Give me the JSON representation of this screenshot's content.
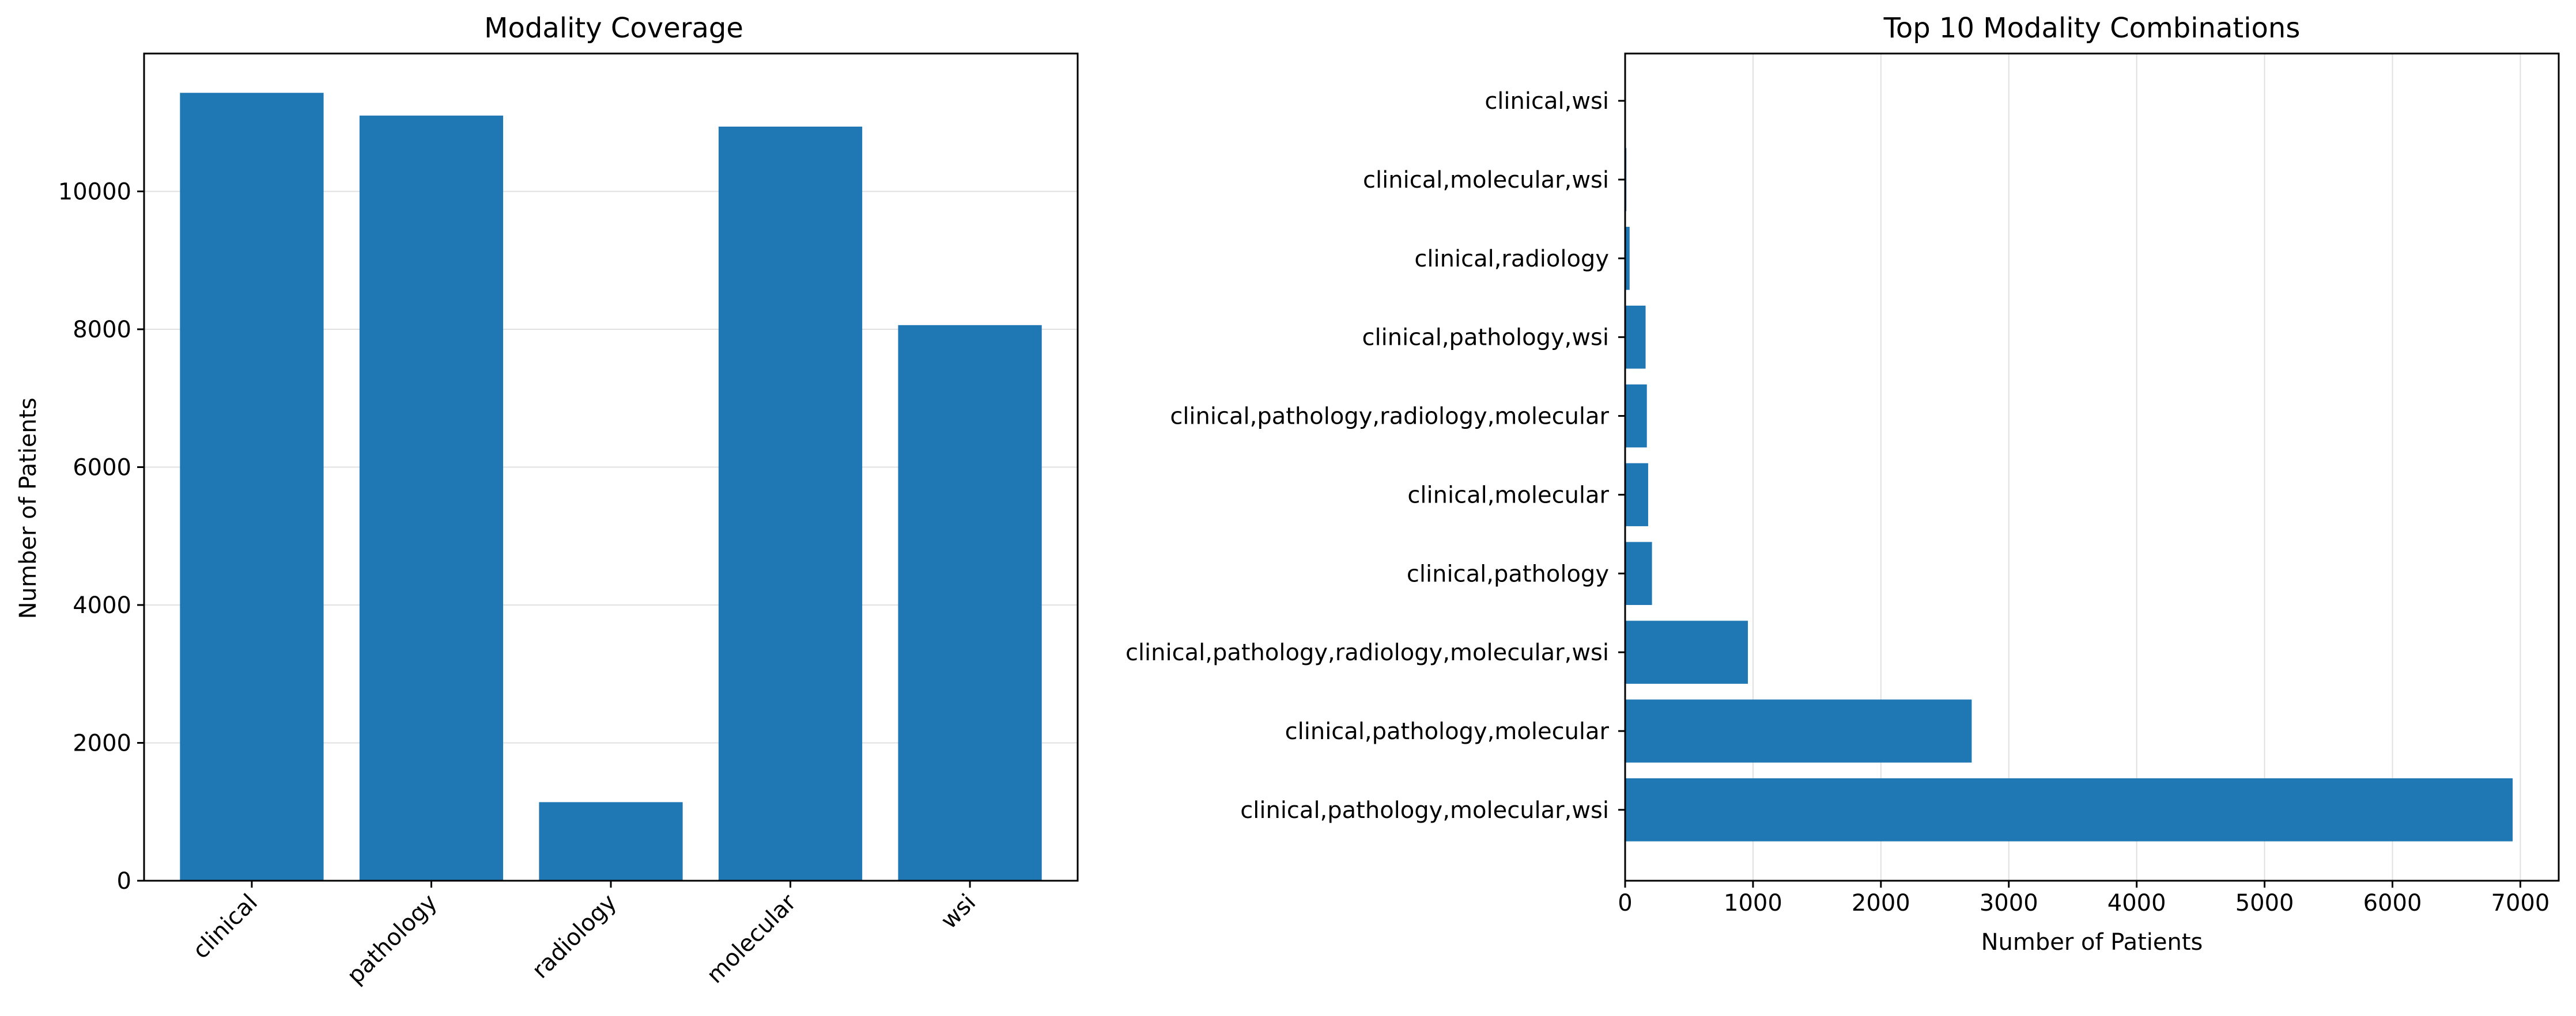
{
  "chart_data": [
    {
      "type": "bar",
      "title": "Modality Coverage",
      "xlabel": "",
      "ylabel": "Number of Patients",
      "categories": [
        "clinical",
        "pathology",
        "radiology",
        "molecular",
        "wsi"
      ],
      "values": [
        11430,
        11100,
        1140,
        10940,
        8060
      ],
      "ylim": [
        0,
        12000
      ],
      "yticks": [
        0,
        2000,
        4000,
        6000,
        8000,
        10000
      ],
      "grid": "y",
      "color": "#1f77b4"
    },
    {
      "type": "bar",
      "orientation": "horizontal",
      "title": "Top 10 Modality Combinations",
      "xlabel": "Number of Patients",
      "ylabel": "",
      "categories": [
        "clinical,pathology,molecular,wsi",
        "clinical,pathology,molecular",
        "clinical,pathology,radiology,molecular,wsi",
        "clinical,pathology",
        "clinical,molecular",
        "clinical,pathology,radiology,molecular",
        "clinical,pathology,wsi",
        "clinical,radiology",
        "clinical,molecular,wsi",
        "clinical,wsi"
      ],
      "values": [
        6940,
        2710,
        960,
        210,
        180,
        170,
        160,
        35,
        10,
        5
      ],
      "xlim": [
        0,
        7300
      ],
      "xticks": [
        0,
        1000,
        2000,
        3000,
        4000,
        5000,
        6000,
        7000
      ],
      "grid": "x",
      "color": "#1f77b4"
    }
  ]
}
